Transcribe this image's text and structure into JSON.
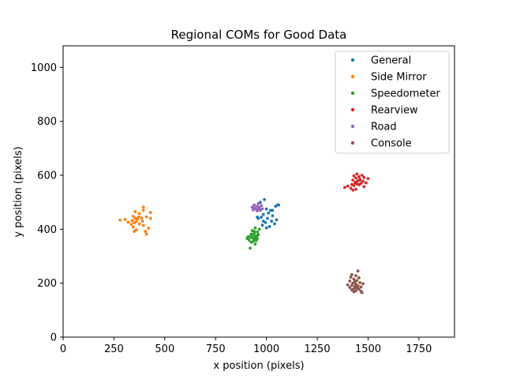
{
  "chart_data": {
    "type": "scatter",
    "title": "Regional COMs for Good Data",
    "xlabel": "x position (pixels)",
    "ylabel": "y position (pixels)",
    "xlim": [
      0,
      1925
    ],
    "ylim": [
      0,
      1080
    ],
    "xticks": [
      0,
      250,
      500,
      750,
      1000,
      1250,
      1500,
      1750
    ],
    "yticks": [
      0,
      200,
      400,
      600,
      800,
      1000
    ],
    "grid": false,
    "legend_position": "top-right",
    "series": [
      {
        "name": "General",
        "color": "#1f77b4",
        "points": [
          [
            990,
            510
          ],
          [
            1055,
            490
          ],
          [
            1045,
            485
          ],
          [
            965,
            480
          ],
          [
            1000,
            475
          ],
          [
            1020,
            470
          ],
          [
            1010,
            460
          ],
          [
            985,
            455
          ],
          [
            1030,
            450
          ],
          [
            975,
            445
          ],
          [
            960,
            440
          ],
          [
            1005,
            440
          ],
          [
            1050,
            435
          ],
          [
            1025,
            430
          ],
          [
            995,
            425
          ],
          [
            1040,
            420
          ],
          [
            980,
            415
          ],
          [
            1015,
            410
          ],
          [
            1000,
            405
          ],
          [
            985,
            430
          ],
          [
            1030,
            470
          ],
          [
            1060,
            490
          ],
          [
            970,
            500
          ],
          [
            955,
            445
          ]
        ]
      },
      {
        "name": "Side Mirror",
        "color": "#ff7f0e",
        "points": [
          [
            395,
            482
          ],
          [
            395,
            470
          ],
          [
            355,
            465
          ],
          [
            430,
            462
          ],
          [
            375,
            458
          ],
          [
            345,
            448
          ],
          [
            410,
            446
          ],
          [
            385,
            442
          ],
          [
            430,
            440
          ],
          [
            365,
            438
          ],
          [
            305,
            436
          ],
          [
            280,
            434
          ],
          [
            340,
            432
          ],
          [
            390,
            430
          ],
          [
            360,
            428
          ],
          [
            320,
            426
          ],
          [
            350,
            424
          ],
          [
            375,
            420
          ],
          [
            335,
            418
          ],
          [
            395,
            414
          ],
          [
            345,
            408
          ],
          [
            420,
            404
          ],
          [
            360,
            398
          ],
          [
            405,
            392
          ],
          [
            410,
            382
          ],
          [
            355,
            440
          ],
          [
            370,
            445
          ],
          [
            350,
            392
          ]
        ]
      },
      {
        "name": "Speedometer",
        "color": "#2ca02c",
        "points": [
          [
            945,
            405
          ],
          [
            965,
            400
          ],
          [
            930,
            395
          ],
          [
            955,
            390
          ],
          [
            940,
            385
          ],
          [
            925,
            382
          ],
          [
            960,
            380
          ],
          [
            935,
            378
          ],
          [
            950,
            375
          ],
          [
            920,
            372
          ],
          [
            945,
            370
          ],
          [
            930,
            368
          ],
          [
            905,
            366
          ],
          [
            955,
            365
          ],
          [
            940,
            362
          ],
          [
            915,
            360
          ],
          [
            950,
            358
          ],
          [
            935,
            355
          ],
          [
            925,
            352
          ],
          [
            945,
            345
          ],
          [
            920,
            330
          ],
          [
            910,
            372
          ],
          [
            940,
            392
          ],
          [
            952,
            372
          ]
        ]
      },
      {
        "name": "Rearview",
        "color": "#d62728",
        "points": [
          [
            1445,
            605
          ],
          [
            1470,
            600
          ],
          [
            1430,
            598
          ],
          [
            1455,
            595
          ],
          [
            1480,
            592
          ],
          [
            1440,
            590
          ],
          [
            1500,
            588
          ],
          [
            1460,
            585
          ],
          [
            1425,
            582
          ],
          [
            1450,
            580
          ],
          [
            1475,
            578
          ],
          [
            1440,
            575
          ],
          [
            1490,
            572
          ],
          [
            1465,
            570
          ],
          [
            1445,
            568
          ],
          [
            1420,
            566
          ],
          [
            1455,
            565
          ],
          [
            1430,
            562
          ],
          [
            1400,
            560
          ],
          [
            1480,
            558
          ],
          [
            1385,
            555
          ],
          [
            1415,
            552
          ],
          [
            1440,
            548
          ],
          [
            1425,
            545
          ],
          [
            1460,
            582
          ],
          [
            1435,
            572
          ]
        ]
      },
      {
        "name": "Road",
        "color": "#9467bd",
        "points": [
          [
            960,
            495
          ],
          [
            940,
            490
          ],
          [
            975,
            488
          ],
          [
            955,
            485
          ],
          [
            930,
            482
          ],
          [
            965,
            480
          ],
          [
            945,
            478
          ],
          [
            980,
            476
          ],
          [
            950,
            474
          ],
          [
            935,
            472
          ],
          [
            970,
            470
          ],
          [
            955,
            468
          ],
          [
            942,
            480
          ],
          [
            962,
            476
          ]
        ]
      },
      {
        "name": "Console",
        "color": "#8c564b",
        "points": [
          [
            1450,
            245
          ],
          [
            1420,
            232
          ],
          [
            1440,
            228
          ],
          [
            1415,
            222
          ],
          [
            1455,
            220
          ],
          [
            1430,
            215
          ],
          [
            1445,
            210
          ],
          [
            1410,
            208
          ],
          [
            1435,
            205
          ],
          [
            1460,
            202
          ],
          [
            1425,
            200
          ],
          [
            1475,
            198
          ],
          [
            1440,
            196
          ],
          [
            1400,
            194
          ],
          [
            1420,
            192
          ],
          [
            1450,
            190
          ],
          [
            1435,
            188
          ],
          [
            1465,
            186
          ],
          [
            1410,
            184
          ],
          [
            1445,
            182
          ],
          [
            1430,
            180
          ],
          [
            1455,
            178
          ],
          [
            1420,
            175
          ],
          [
            1440,
            172
          ],
          [
            1465,
            170
          ],
          [
            1430,
            168
          ],
          [
            1470,
            165
          ]
        ]
      }
    ]
  }
}
